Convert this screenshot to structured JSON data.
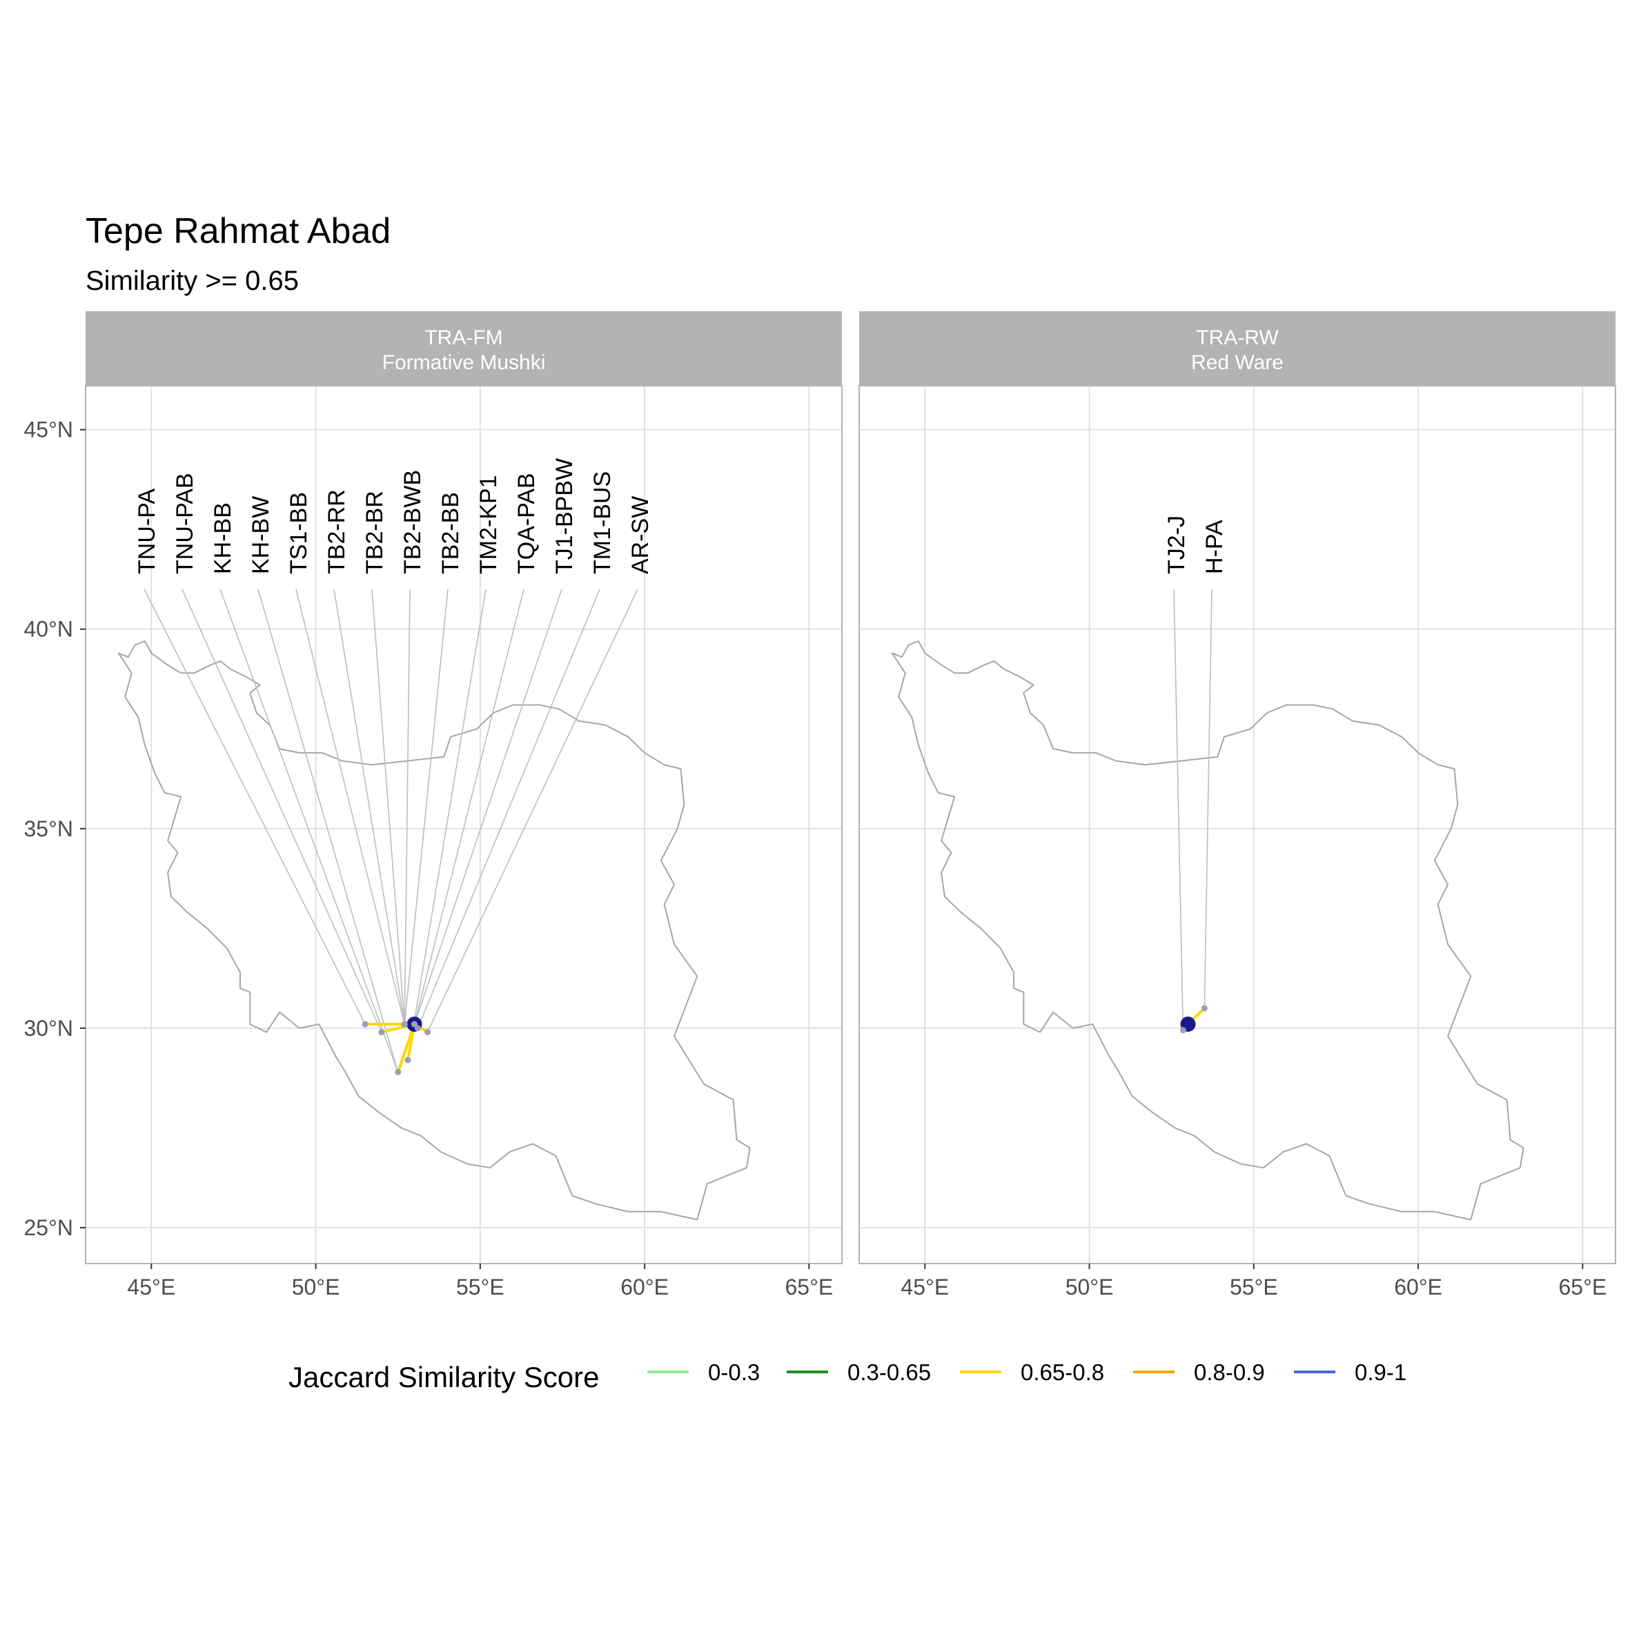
{
  "title": "Tepe Rahmat Abad",
  "subtitle": "Similarity >= 0.65",
  "x_ticks": [
    "45°E",
    "50°E",
    "55°E",
    "60°E",
    "65°E"
  ],
  "y_ticks": [
    "45°N",
    "40°N",
    "35°N",
    "30°N",
    "25°N"
  ],
  "chart_data": {
    "type": "map",
    "xlim": [
      43,
      66
    ],
    "ylim": [
      24.1,
      46.1
    ],
    "grid": true,
    "legend_position": "bottom",
    "basemap": "Iran outline",
    "panels": [
      {
        "strip_line1": "TRA-FM",
        "strip_line2": "Formative Mushki",
        "origin": {
          "lon": 53.0,
          "lat": 30.1
        },
        "sites": [
          {
            "label": "TNU-PA",
            "lon": 51.5,
            "lat": 30.1,
            "class": "0.65-0.8"
          },
          {
            "label": "TNU-PAB",
            "lon": 52.0,
            "lat": 29.9,
            "class": "0.65-0.8"
          },
          {
            "label": "KH-BB",
            "lon": 52.5,
            "lat": 28.9,
            "class": "0.65-0.8"
          },
          {
            "label": "KH-BW",
            "lon": 52.5,
            "lat": 28.9,
            "class": "0.65-0.8"
          },
          {
            "label": "TS1-BB",
            "lon": 52.7,
            "lat": 30.1,
            "class": "0.65-0.8"
          },
          {
            "label": "TB2-RR",
            "lon": 52.7,
            "lat": 30.1,
            "class": "0.65-0.8"
          },
          {
            "label": "TB2-BR",
            "lon": 52.7,
            "lat": 30.1,
            "class": "0.65-0.8"
          },
          {
            "label": "TB2-BWB",
            "lon": 52.7,
            "lat": 30.1,
            "class": "0.65-0.8"
          },
          {
            "label": "TB2-BB",
            "lon": 52.7,
            "lat": 30.1,
            "class": "0.65-0.8"
          },
          {
            "label": "TM2-KP1",
            "lon": 52.8,
            "lat": 29.2,
            "class": "0.65-0.8"
          },
          {
            "label": "TQA-PAB",
            "lon": 53.0,
            "lat": 30.1,
            "class": "0.65-0.8"
          },
          {
            "label": "TJ1-BPBW",
            "lon": 53.0,
            "lat": 30.1,
            "class": "0.65-0.8"
          },
          {
            "label": "TM1-BUS",
            "lon": 53.1,
            "lat": 30.0,
            "class": "0.65-0.8"
          },
          {
            "label": "AR-SW",
            "lon": 53.4,
            "lat": 29.9,
            "class": "0.65-0.8"
          }
        ]
      },
      {
        "strip_line1": "TRA-RW",
        "strip_line2": "Red Ware",
        "origin": {
          "lon": 53.0,
          "lat": 30.1
        },
        "sites": [
          {
            "label": "TJ2-J",
            "lon": 52.85,
            "lat": 29.95,
            "class": "0.65-0.8"
          },
          {
            "label": "H-PA",
            "lon": 53.5,
            "lat": 30.5,
            "class": "0.65-0.8"
          }
        ]
      }
    ],
    "legend": {
      "title": "Jaccard Similarity Score",
      "items": [
        {
          "label": "0-0.3",
          "color": "#90EE90"
        },
        {
          "label": "0.3-0.65",
          "color": "#228B22"
        },
        {
          "label": "0.65-0.8",
          "color": "#FFD700"
        },
        {
          "label": "0.8-0.9",
          "color": "#FFA500"
        },
        {
          "label": "0.9-1",
          "color": "#4169E1"
        }
      ]
    }
  }
}
